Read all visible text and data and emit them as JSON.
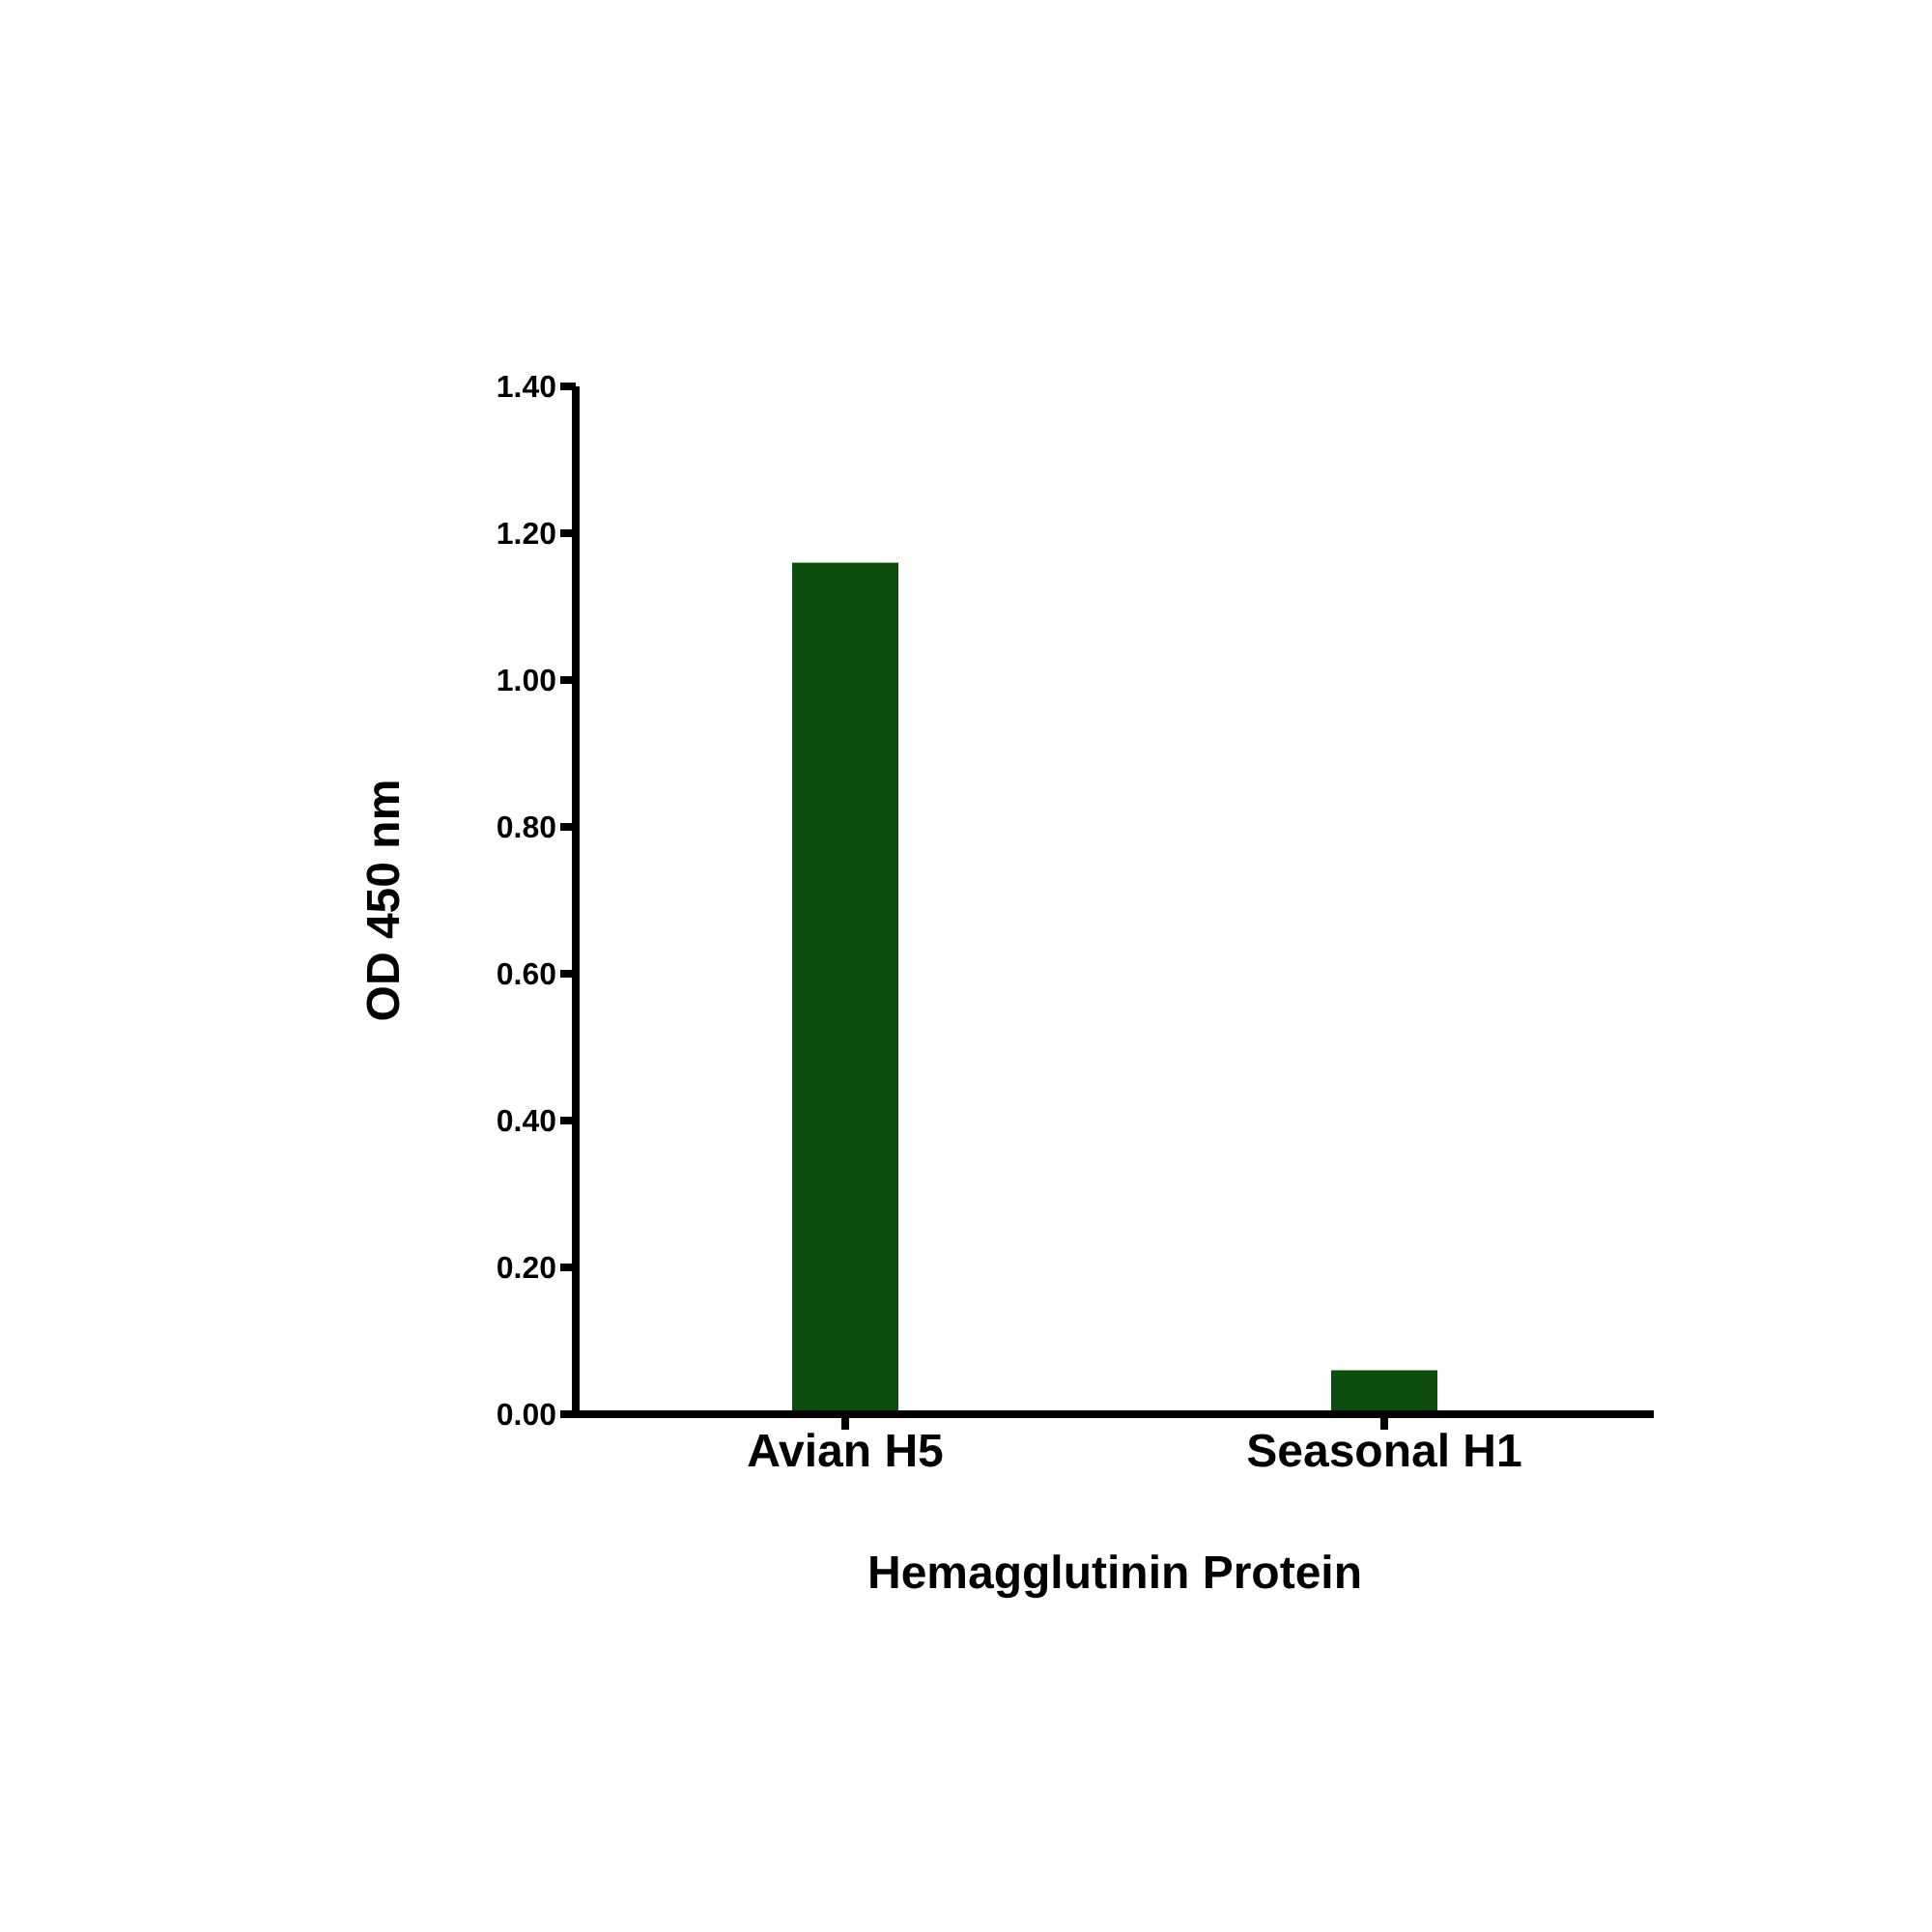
{
  "chart_data": {
    "type": "bar",
    "xlabel": "Hemagglutinin Protein",
    "ylabel": "OD 450 nm",
    "categories": [
      "Avian H5",
      "Seasonal H1"
    ],
    "values": [
      1.16,
      0.06
    ],
    "color": "#0d4d0d",
    "ylim": [
      0,
      1.4
    ],
    "yticks": [
      {
        "value": 0,
        "label": "0.00"
      },
      {
        "value": 0.2,
        "label": "0.20"
      },
      {
        "value": 0.4,
        "label": "0.40"
      },
      {
        "value": 0.6,
        "label": "0.60"
      },
      {
        "value": 0.8,
        "label": "0.80"
      },
      {
        "value": 1.0,
        "label": "1.00"
      },
      {
        "value": 1.2,
        "label": "1.20"
      },
      {
        "value": 1.4,
        "label": "1.40"
      }
    ],
    "grid": false
  }
}
